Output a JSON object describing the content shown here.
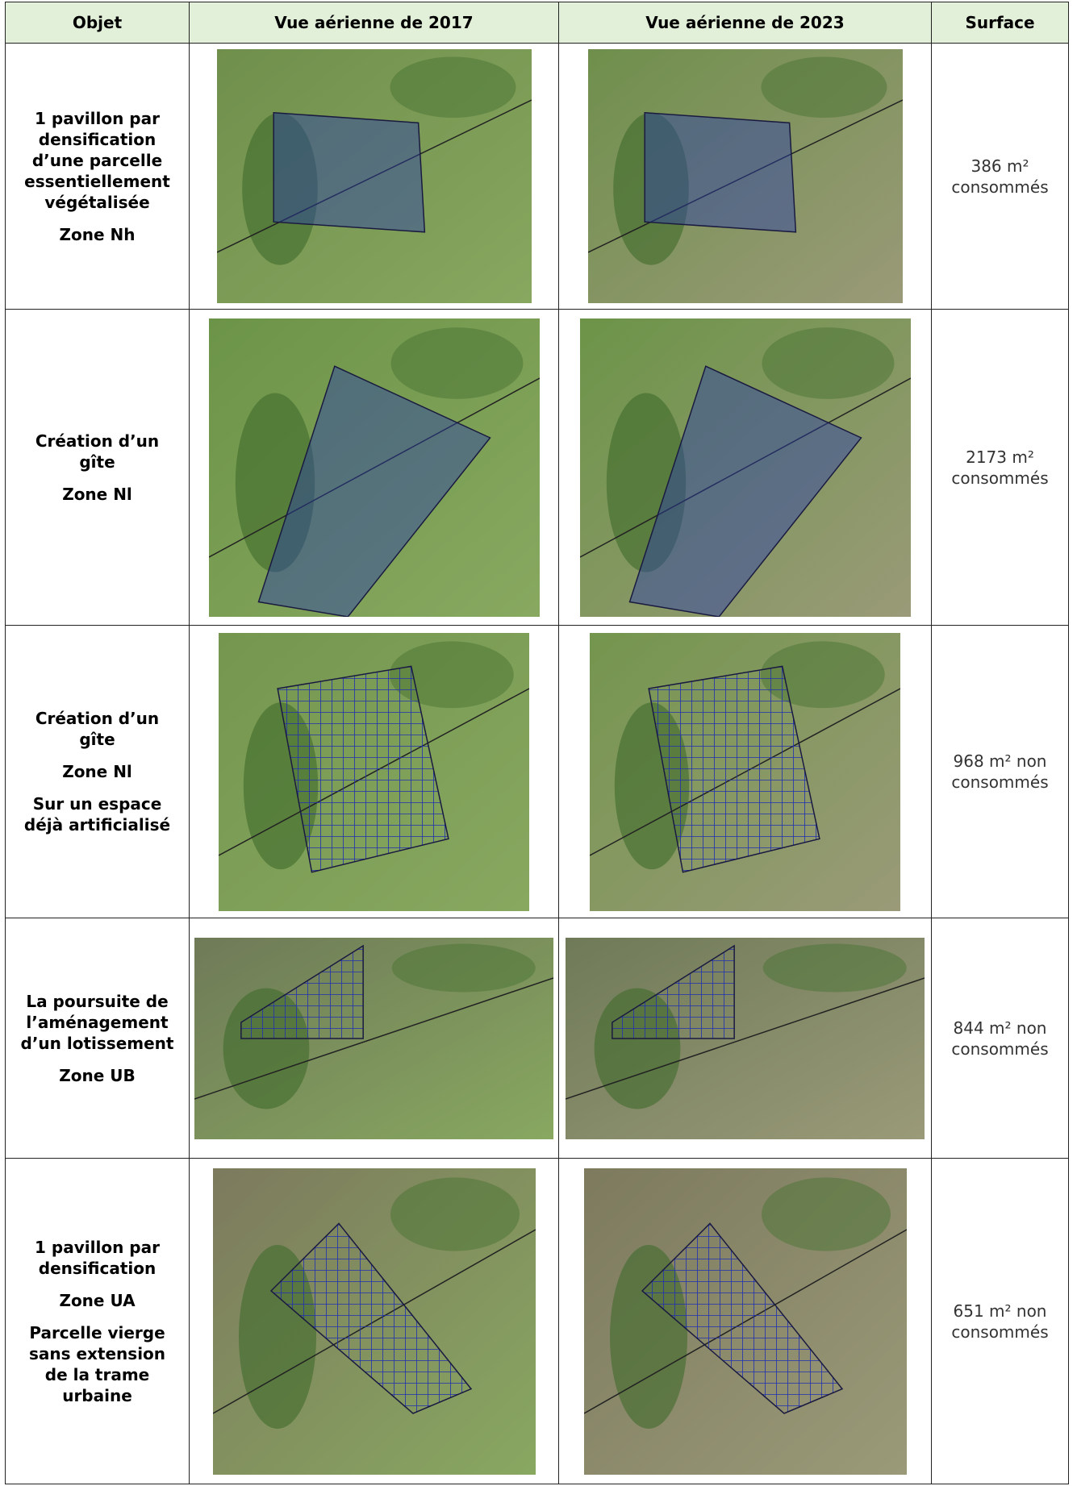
{
  "table": {
    "headers": [
      "Objet",
      "Vue aérienne de 2017",
      "Vue aérienne de 2023",
      "Surface"
    ],
    "rows": [
      {
        "objet": [
          "1 pavillon par densification d’une parcelle essentiellement végétalisée",
          "Zone Nh"
        ],
        "surface": "386 m² consommés"
      },
      {
        "objet": [
          "Création d’un gîte",
          "Zone Nl"
        ],
        "surface": "2173 m² consommés"
      },
      {
        "objet": [
          "Création d’un gîte",
          "Zone Nl",
          "Sur un espace déjà artificialisé"
        ],
        "surface": "968 m² non consommés"
      },
      {
        "objet": [
          "La poursuite de l’aménagement d’un lotissement",
          "Zone UB"
        ],
        "surface": "844 m² non consommés"
      },
      {
        "objet": [
          "1 pavillon par densification",
          "Zone UA",
          "Parcelle vierge sans extension de la trame urbaine"
        ],
        "surface": "651 m² non consommés"
      }
    ]
  }
}
